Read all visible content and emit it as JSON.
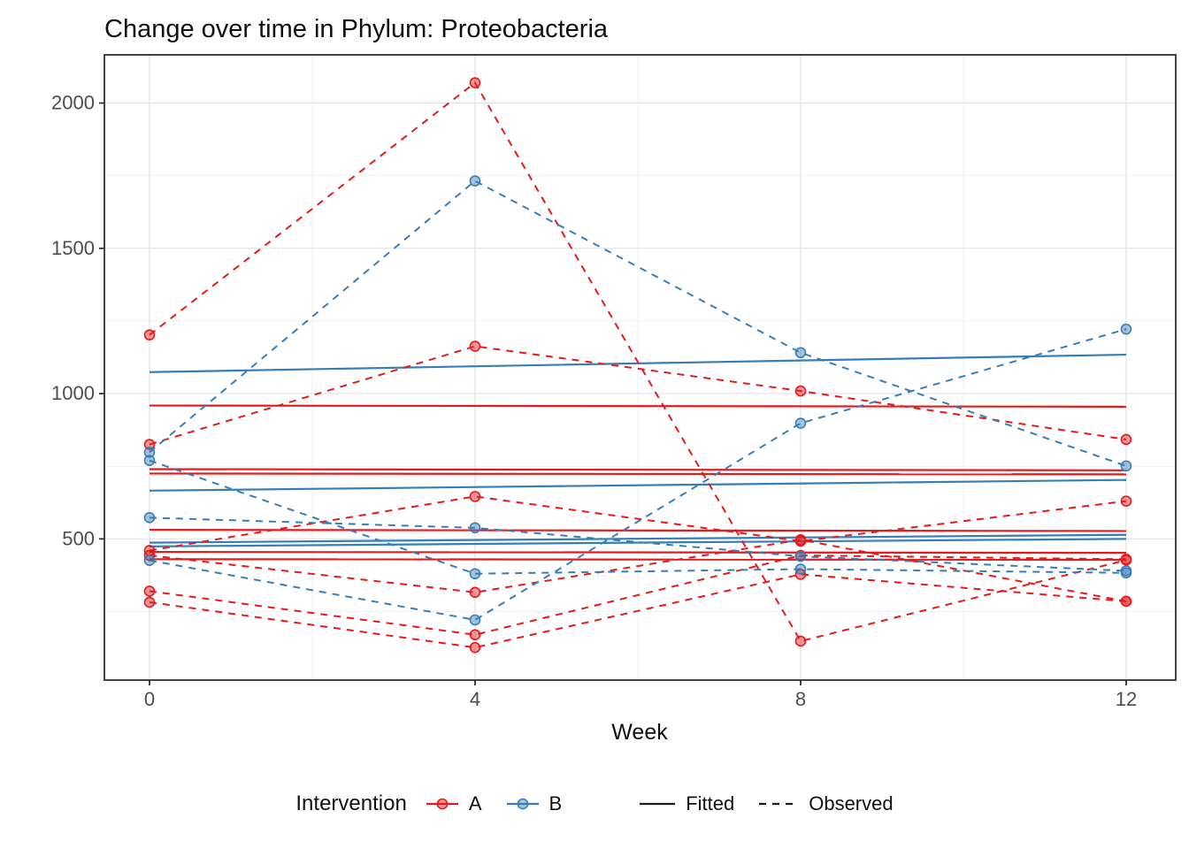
{
  "title": "Change over time in Phylum: Proteobacteria",
  "colors": {
    "group_a": "#E41A1C",
    "group_b": "#377EB8",
    "grid_major": "#E2E2E2",
    "grid_minor": "#F1F1F1",
    "panel_border": "#2F2F2F",
    "tick_text": "#4D4D4D",
    "title_text": "#111111",
    "legend_line": "#1A1A1A"
  },
  "legend": {
    "intervention_title": "Intervention",
    "items": [
      {
        "label": "A",
        "color": "#E41A1C"
      },
      {
        "label": "B",
        "color": "#377EB8"
      }
    ],
    "linetype_items": [
      {
        "label": "Fitted",
        "style": "solid"
      },
      {
        "label": "Observed",
        "style": "dashed"
      }
    ]
  },
  "chart_data": {
    "type": "line",
    "title": "Change over time in Phylum: Proteobacteria",
    "xlabel": "Week",
    "ylabel": "",
    "x": [
      0,
      4,
      8,
      12
    ],
    "x_ticks": [
      0,
      4,
      8,
      12
    ],
    "x_minor_ticks": [
      2,
      6,
      10
    ],
    "y_ticks": [
      500,
      1000,
      1500,
      2000
    ],
    "y_minor_ticks": [
      250,
      750,
      1250,
      1750
    ],
    "xlim": [
      -0.554,
      12.609
    ],
    "ylim": [
      14,
      2166
    ],
    "grid": true,
    "legend_position": "bottom",
    "series": [
      {
        "id": "A-subj1-observed",
        "group": "A",
        "kind": "observed",
        "values": [
          1202,
          2070,
          148,
          427
        ]
      },
      {
        "id": "A-subj2-observed",
        "group": "A",
        "kind": "observed",
        "values": [
          825,
          1163,
          1009,
          842
        ]
      },
      {
        "id": "A-subj3-observed",
        "group": "A",
        "kind": "observed",
        "values": [
          460,
          646,
          492,
          630
        ]
      },
      {
        "id": "A-subj4-observed",
        "group": "A",
        "kind": "observed",
        "values": [
          443,
          316,
          497,
          285
        ]
      },
      {
        "id": "A-subj5-observed",
        "group": "A",
        "kind": "observed",
        "values": [
          320,
          170,
          443,
          430
        ]
      },
      {
        "id": "A-subj6-observed",
        "group": "A",
        "kind": "observed",
        "values": [
          282,
          126,
          378,
          285
        ]
      },
      {
        "id": "B-subj1-observed",
        "group": "B",
        "kind": "observed",
        "values": [
          798,
          1732,
          1141,
          751
        ]
      },
      {
        "id": "B-subj2-observed",
        "group": "B",
        "kind": "observed",
        "values": [
          426,
          221,
          898,
          1222
        ]
      },
      {
        "id": "B-subj3-observed",
        "group": "B",
        "kind": "observed",
        "values": [
          573,
          538,
          440,
          390
        ]
      },
      {
        "id": "B-subj4-observed",
        "group": "B",
        "kind": "observed",
        "values": [
          770,
          380,
          396,
          383
        ]
      },
      {
        "id": "A-subj1-fitted",
        "group": "A",
        "kind": "fitted",
        "values": [
          959,
          955
        ]
      },
      {
        "id": "A-subj2-fitted",
        "group": "A",
        "kind": "fitted",
        "values": [
          740,
          736
        ]
      },
      {
        "id": "A-subj3-fitted",
        "group": "A",
        "kind": "fitted",
        "values": [
          725,
          722
        ]
      },
      {
        "id": "A-subj4-fitted",
        "group": "A",
        "kind": "fitted",
        "values": [
          531,
          527
        ]
      },
      {
        "id": "A-subj5-fitted",
        "group": "A",
        "kind": "fitted",
        "values": [
          455,
          452
        ]
      },
      {
        "id": "A-subj6-fitted",
        "group": "A",
        "kind": "fitted",
        "values": [
          430,
          428
        ]
      },
      {
        "id": "B-subj1-fitted",
        "group": "B",
        "kind": "fitted",
        "values": [
          1074,
          1134
        ]
      },
      {
        "id": "B-subj2-fitted",
        "group": "B",
        "kind": "fitted",
        "values": [
          666,
          703
        ]
      },
      {
        "id": "B-subj3-fitted",
        "group": "B",
        "kind": "fitted",
        "values": [
          487,
          514
        ]
      },
      {
        "id": "B-subj4-fitted",
        "group": "B",
        "kind": "fitted",
        "values": [
          474,
          500
        ]
      }
    ]
  }
}
